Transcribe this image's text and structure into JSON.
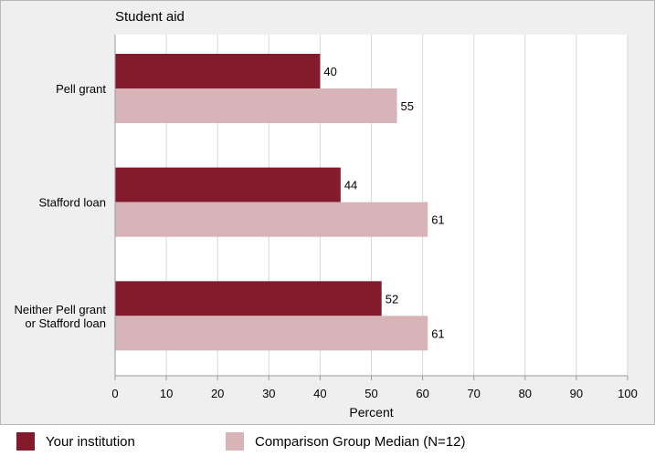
{
  "chart_data": {
    "type": "bar",
    "orientation": "horizontal",
    "title": "Student aid",
    "xlabel": "Percent",
    "ylabel": "",
    "xlim": [
      0,
      100
    ],
    "xticks": [
      0,
      10,
      20,
      30,
      40,
      50,
      60,
      70,
      80,
      90,
      100
    ],
    "categories": [
      [
        "Pell grant"
      ],
      [
        "Stafford loan"
      ],
      [
        "Neither Pell grant",
        "or Stafford loan"
      ]
    ],
    "series": [
      {
        "name": "Your institution",
        "values": [
          40,
          44,
          52
        ],
        "color": "#841b2d"
      },
      {
        "name": "Comparison Group Median (N=12)",
        "values": [
          55,
          61,
          61
        ],
        "color": "#d8b4b9"
      }
    ],
    "grid": true,
    "legend_position": "bottom",
    "plot_background": "#ffffff",
    "gridline_color": "#d7d7d7"
  }
}
